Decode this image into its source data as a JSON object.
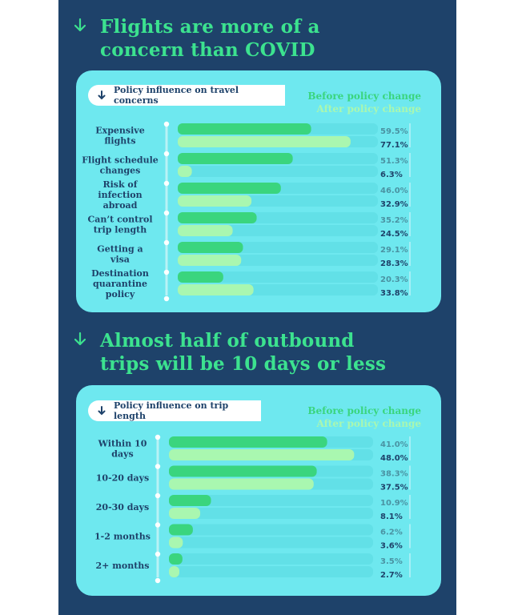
{
  "section1": {
    "heading_line1": "Flights are more of a",
    "heading_line2": "concern than COVID",
    "pill_label": "Policy influence on travel concerns",
    "legend_before": "Before policy change",
    "legend_after": "After policy change"
  },
  "section2": {
    "heading_line1": "Almost half of outbound",
    "heading_line2": "trips will be 10 days or less",
    "pill_label": "Policy influence on trip length",
    "legend_before": "Before policy change",
    "legend_after": "After policy change"
  },
  "colors": {
    "background_panel": "#1e426a",
    "card": "#6ee8ef",
    "heading": "#3ce28f",
    "before_bar": "#3ad57e",
    "after_bar": "#a9f7b0",
    "text_dark": "#1e426a"
  },
  "icons": {
    "heading_arrow": "arrow-down-icon",
    "pill_arrow": "arrow-down-icon"
  },
  "chart_data": [
    {
      "type": "bar",
      "orientation": "horizontal",
      "categories": [
        [
          "Expensive",
          "flights"
        ],
        [
          "Flight schedule",
          "changes"
        ],
        [
          "Risk of",
          "infection",
          "abroad"
        ],
        [
          "Can’t control",
          "trip length"
        ],
        [
          "Getting a",
          "visa"
        ],
        [
          "Destination",
          "quarantine",
          "policy"
        ]
      ],
      "series": [
        {
          "name": "Before policy change",
          "values": [
            59.5,
            51.3,
            46.0,
            35.2,
            29.1,
            20.3
          ],
          "labels": [
            "59.5%",
            "51.3%",
            "46.0%",
            "35.2%",
            "29.1%",
            "20.3%"
          ]
        },
        {
          "name": "After policy change",
          "values": [
            77.1,
            6.3,
            32.9,
            24.5,
            28.3,
            33.8
          ],
          "labels": [
            "77.1%",
            "6.3%",
            "32.9%",
            "24.5%",
            "28.3%",
            "33.8%"
          ]
        }
      ],
      "unit": "%",
      "xlim": [
        0,
        100
      ],
      "legend": "top-right"
    },
    {
      "type": "bar",
      "orientation": "horizontal",
      "categories": [
        [
          "Within 10",
          "days"
        ],
        [
          "10-20 days"
        ],
        [
          "20-30 days"
        ],
        [
          "1-2 months"
        ],
        [
          "2+ months"
        ]
      ],
      "series": [
        {
          "name": "Before policy change",
          "values": [
            41.0,
            38.3,
            10.9,
            6.2,
            3.5
          ],
          "labels": [
            "41.0%",
            "38.3%",
            "10.9%",
            "6.2%",
            "3.5%"
          ]
        },
        {
          "name": "After policy change",
          "values": [
            48.0,
            37.5,
            8.1,
            3.6,
            2.7
          ],
          "labels": [
            "48.0%",
            "37.5%",
            "8.1%",
            "3.6%",
            "2.7%"
          ]
        }
      ],
      "unit": "%",
      "xlim": [
        0,
        100
      ],
      "legend": "top-right"
    }
  ]
}
